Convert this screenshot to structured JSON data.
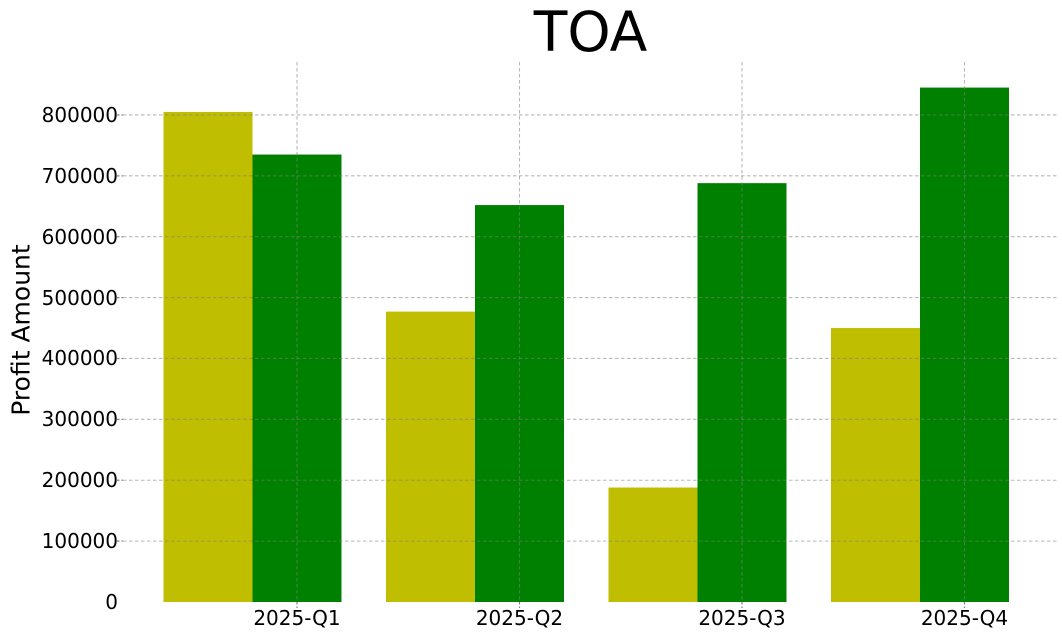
{
  "title": "TOA",
  "y_axis_label": "Profit Amount",
  "colors": {
    "series_yellow": "#c0be00",
    "series_green": "#008000",
    "grid": "#b9b9b9",
    "background": "#ffffff",
    "text": "#000000"
  },
  "chart_data": {
    "type": "bar",
    "title": "TOA",
    "xlabel": "",
    "ylabel": "Profit Amount",
    "categories": [
      "2025-Q1",
      "2025-Q2",
      "2025-Q3",
      "2025-Q4"
    ],
    "series": [
      {
        "name": "yellow",
        "color": "#c0be00",
        "values": [
          805000,
          477000,
          188000,
          450000
        ]
      },
      {
        "name": "green",
        "color": "#008000",
        "values": [
          735000,
          652000,
          688000,
          845000
        ]
      }
    ],
    "ylim": [
      0,
      887000
    ],
    "yticks": [
      0,
      100000,
      200000,
      300000,
      400000,
      500000,
      600000,
      700000,
      800000
    ],
    "grid": true,
    "grid_style": "dashed",
    "legend_position": "none",
    "bar_group_note": "two bars per category, yellow left of green, x tick centered under green bar"
  }
}
